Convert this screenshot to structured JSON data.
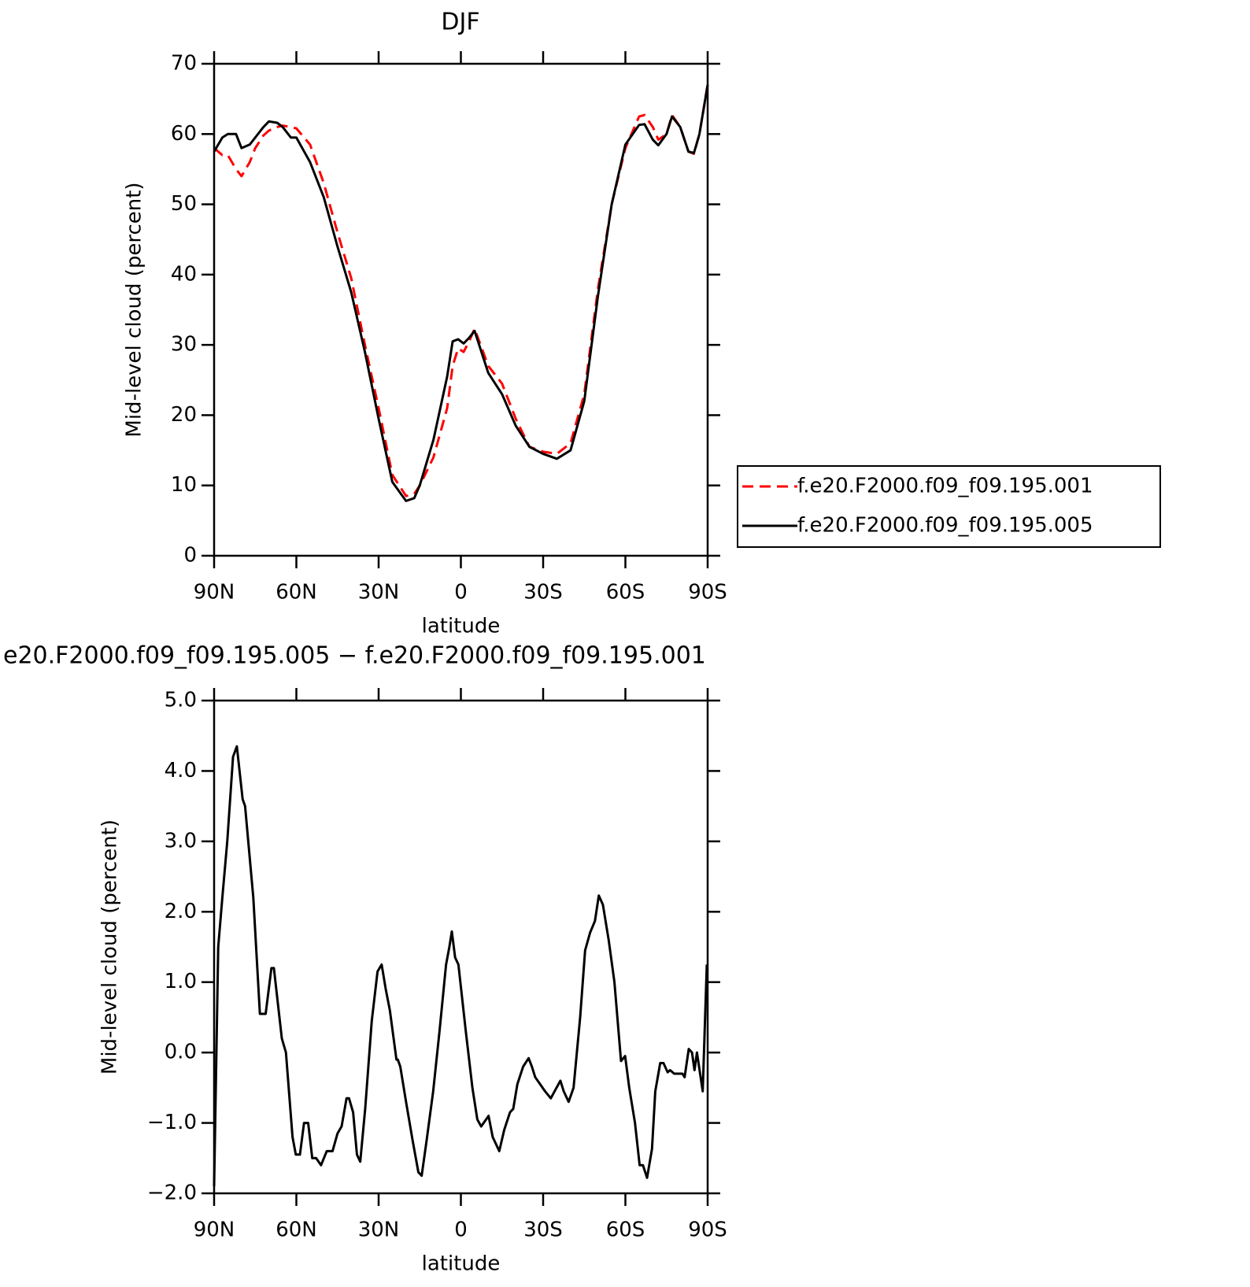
{
  "chart_data": [
    {
      "type": "line",
      "title": "DJF",
      "xlabel": "latitude",
      "ylabel": "Mid-level cloud (percent)",
      "xlim": [
        90,
        -90
      ],
      "ylim": [
        0,
        70
      ],
      "xticks": [
        {
          "value": 90,
          "label": "90N"
        },
        {
          "value": 60,
          "label": "60N"
        },
        {
          "value": 30,
          "label": "30N"
        },
        0,
        {
          "value": -30,
          "label": "30S"
        },
        {
          "value": -60,
          "label": "60S"
        },
        {
          "value": -90,
          "label": "90S"
        }
      ],
      "yticks": [
        0,
        10,
        20,
        30,
        40,
        50,
        60,
        70
      ],
      "x": [
        90,
        87,
        85,
        82,
        80,
        77,
        75,
        72,
        70,
        67,
        65,
        62,
        60,
        55,
        50,
        45,
        40,
        35,
        30,
        25,
        20,
        17,
        15,
        10,
        5,
        3,
        1,
        -1,
        -3,
        -5,
        -10,
        -15,
        -20,
        -25,
        -30,
        -35,
        -40,
        -45,
        -50,
        -55,
        -60,
        -65,
        -67,
        -70,
        -72,
        -75,
        -77,
        -80,
        -83,
        -85,
        -87,
        -90
      ],
      "series": [
        {
          "name": "f.e20.F2000.f09_f09.195.001",
          "color": "#ff0000",
          "dash": true,
          "values": [
            58,
            57,
            57,
            55,
            54,
            56,
            58,
            59.8,
            60.5,
            61,
            61.2,
            61,
            60.8,
            58.5,
            53,
            46,
            39.5,
            30,
            21,
            11.5,
            8.5,
            8.8,
            10,
            14,
            21,
            27,
            29.5,
            29,
            30.5,
            32.3,
            27,
            24.5,
            19.5,
            15.5,
            14.8,
            14.5,
            16,
            23,
            38,
            50,
            58,
            62.5,
            62.7,
            61,
            59.2,
            60,
            62.7,
            61,
            57.5,
            57.2,
            60,
            67
          ]
        },
        {
          "name": "f.e20.F2000.f09_f09.195.005",
          "color": "#000000",
          "dash": false,
          "values": [
            57.5,
            59.5,
            60,
            60,
            58,
            58.5,
            59.5,
            61,
            61.8,
            61.6,
            61,
            59.5,
            59.5,
            56,
            51,
            44,
            37.5,
            29,
            19.5,
            10.5,
            7.8,
            8.2,
            10,
            16.5,
            25.5,
            30.5,
            30.8,
            30.2,
            31,
            32,
            26,
            23,
            18.5,
            15.5,
            14.5,
            13.8,
            15,
            22,
            37,
            50,
            58.5,
            61.3,
            61.4,
            59.2,
            58.4,
            60,
            62.5,
            61,
            57.5,
            57.3,
            60,
            67
          ]
        }
      ]
    },
    {
      "type": "line",
      "title": "e20.F2000.f09_f09.195.005 − f.e20.F2000.f09_f09.195.001",
      "xlabel": "latitude",
      "ylabel": "Mid-level cloud (percent)",
      "xlim": [
        90,
        -90
      ],
      "ylim": [
        -2,
        5
      ],
      "xticks": [
        {
          "value": 90,
          "label": "90N"
        },
        {
          "value": 60,
          "label": "60N"
        },
        {
          "value": 30,
          "label": "30N"
        },
        0,
        {
          "value": -30,
          "label": "30S"
        },
        {
          "value": -60,
          "label": "60S"
        },
        {
          "value": -90,
          "label": "90S"
        }
      ],
      "yticks": [
        {
          "value": -2,
          "label": "−2.0"
        },
        {
          "value": -1,
          "label": "−1.0"
        },
        {
          "value": 0,
          "label": "0.0"
        },
        {
          "value": 1,
          "label": "1.0"
        },
        {
          "value": 2,
          "label": "2.0"
        },
        {
          "value": 3,
          "label": "3.0"
        },
        {
          "value": 4,
          "label": "4.0"
        },
        {
          "value": 5,
          "label": "5.0"
        }
      ],
      "x": [
        90,
        88.5,
        87,
        85.2,
        83.1,
        81.7,
        79.6,
        78.7,
        75.7,
        73.3,
        71.2,
        69.1,
        68.2,
        65.3,
        63.8,
        61.4,
        60.2,
        58.7,
        57.2,
        55.7,
        54.2,
        52.8,
        51,
        48.9,
        46.8,
        45,
        43.5,
        41.7,
        40.8,
        39.3,
        37.9,
        36.7,
        34.9,
        32.5,
        30.4,
        28.9,
        27.4,
        25.9,
        23.5,
        23,
        22.1,
        20,
        17.6,
        15.5,
        14.3,
        12.5,
        10.1,
        7.8,
        5.4,
        4.2,
        3.3,
        2.1,
        0.9,
        -1.8,
        -4.2,
        -6,
        -7.4,
        -9.2,
        -10.1,
        -11.6,
        -12.8,
        -14,
        -15.8,
        -17.9,
        -19.1,
        -20.6,
        -22.7,
        -24.7,
        -25.9,
        -27.1,
        -28.9,
        -30.7,
        -32.8,
        -34.6,
        -36.3,
        -37.5,
        -39.3,
        -41.1,
        -43.5,
        -45.3,
        -47.1,
        -48.9,
        -50.3,
        -51.8,
        -53.9,
        -56,
        -58.4,
        -59.9,
        -61.4,
        -63.5,
        -65.2,
        -66.4,
        -67.9,
        -69.7,
        -70.9,
        -72.7,
        -73.9,
        -75.4,
        -76.3,
        -77.8,
        -79.2,
        -80.8,
        -81.6,
        -83.1,
        -84.3,
        -85.2,
        -86.1,
        -88.2,
        -89.7
      ],
      "color": "#000000",
      "values": [
        -1.9,
        1.5,
        2.2,
        3.0,
        4.2,
        4.35,
        3.6,
        3.5,
        2.2,
        0.55,
        0.55,
        1.2,
        1.2,
        0.2,
        0,
        -1.2,
        -1.45,
        -1.45,
        -1.0,
        -1.0,
        -1.5,
        -1.5,
        -1.6,
        -1.4,
        -1.4,
        -1.15,
        -1.05,
        -0.65,
        -0.65,
        -0.85,
        -1.45,
        -1.55,
        -0.8,
        0.45,
        1.15,
        1.25,
        0.9,
        0.6,
        -0.1,
        -0.1,
        -0.2,
        -0.7,
        -1.25,
        -1.7,
        -1.75,
        -1.25,
        -0.55,
        0.3,
        1.25,
        1.5,
        1.72,
        1.35,
        1.25,
        0.3,
        -0.5,
        -0.95,
        -1.05,
        -0.95,
        -0.9,
        -1.2,
        -1.3,
        -1.4,
        -1.1,
        -0.85,
        -0.8,
        -0.45,
        -0.2,
        -0.08,
        -0.2,
        -0.35,
        -0.45,
        -0.55,
        -0.65,
        -0.52,
        -0.4,
        -0.55,
        -0.7,
        -0.5,
        0.5,
        1.45,
        1.7,
        1.87,
        2.23,
        2.1,
        1.6,
        1.0,
        -0.12,
        -0.05,
        -0.5,
        -1.0,
        -1.6,
        -1.6,
        -1.78,
        -1.37,
        -0.55,
        -0.15,
        -0.15,
        -0.28,
        -0.25,
        -0.3,
        -0.3,
        -0.3,
        -0.35,
        0.05,
        0,
        -0.25,
        0,
        -0.55,
        1.25
      ]
    }
  ]
}
